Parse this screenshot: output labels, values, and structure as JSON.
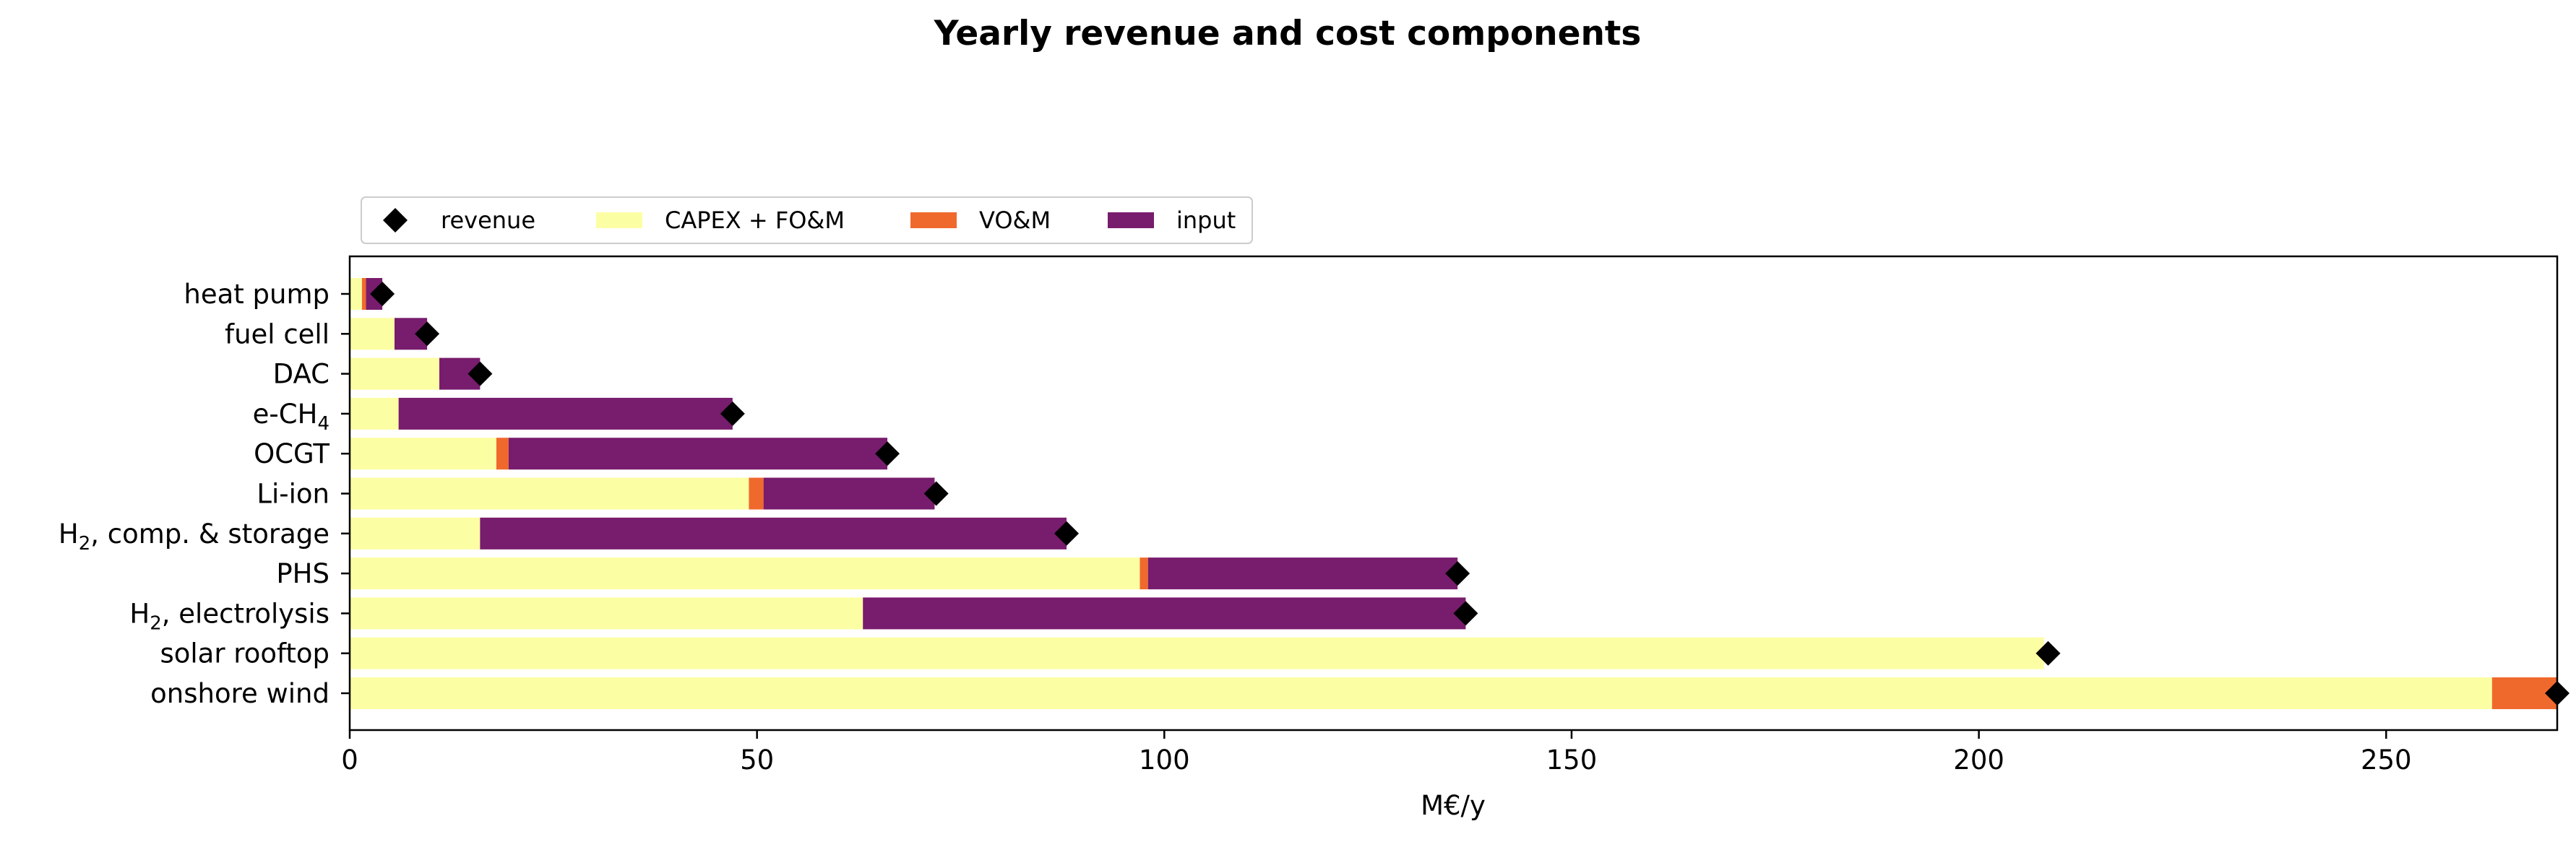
{
  "chart_data": {
    "type": "bar",
    "orientation": "horizontal",
    "stacked": true,
    "title": "Yearly revenue and cost components",
    "xlabel": "M€/y",
    "ylabel": "",
    "xlim": [
      0,
      271
    ],
    "xticks": [
      0,
      50,
      100,
      150,
      200,
      250
    ],
    "grid": false,
    "legend_placement": "top-left, above axes",
    "categories": [
      {
        "label": "heat pump"
      },
      {
        "label": "fuel cell"
      },
      {
        "label": "DAC"
      },
      {
        "label": "e-CH",
        "sub": "4"
      },
      {
        "label": "OCGT"
      },
      {
        "label": "Li-ion"
      },
      {
        "label": ", comp. & storage",
        "prefix": "H",
        "prefix_sub": "2"
      },
      {
        "label": "PHS"
      },
      {
        "label": ", electrolysis",
        "prefix": "H",
        "prefix_sub": "2"
      },
      {
        "label": "solar rooftop"
      },
      {
        "label": "onshore wind"
      }
    ],
    "series": [
      {
        "name": "CAPEX + FO&M",
        "color": "#fcfea4",
        "values": [
          1.5,
          5.5,
          11,
          6,
          18,
          49,
          16,
          97,
          63,
          208,
          263
        ]
      },
      {
        "name": "VO&M",
        "color": "#f0692c",
        "values": [
          0.5,
          0,
          0,
          0,
          1.5,
          1.8,
          0,
          1,
          0,
          0,
          8
        ]
      },
      {
        "name": "input",
        "color": "#781c6d",
        "values": [
          2,
          4,
          5,
          41,
          46.5,
          21,
          72,
          38,
          74,
          0,
          0
        ]
      }
    ],
    "revenue": {
      "name": "revenue",
      "color": "#000000",
      "values": [
        4,
        9.5,
        16,
        47,
        66,
        72,
        88,
        136,
        137,
        208.5,
        271
      ]
    }
  }
}
